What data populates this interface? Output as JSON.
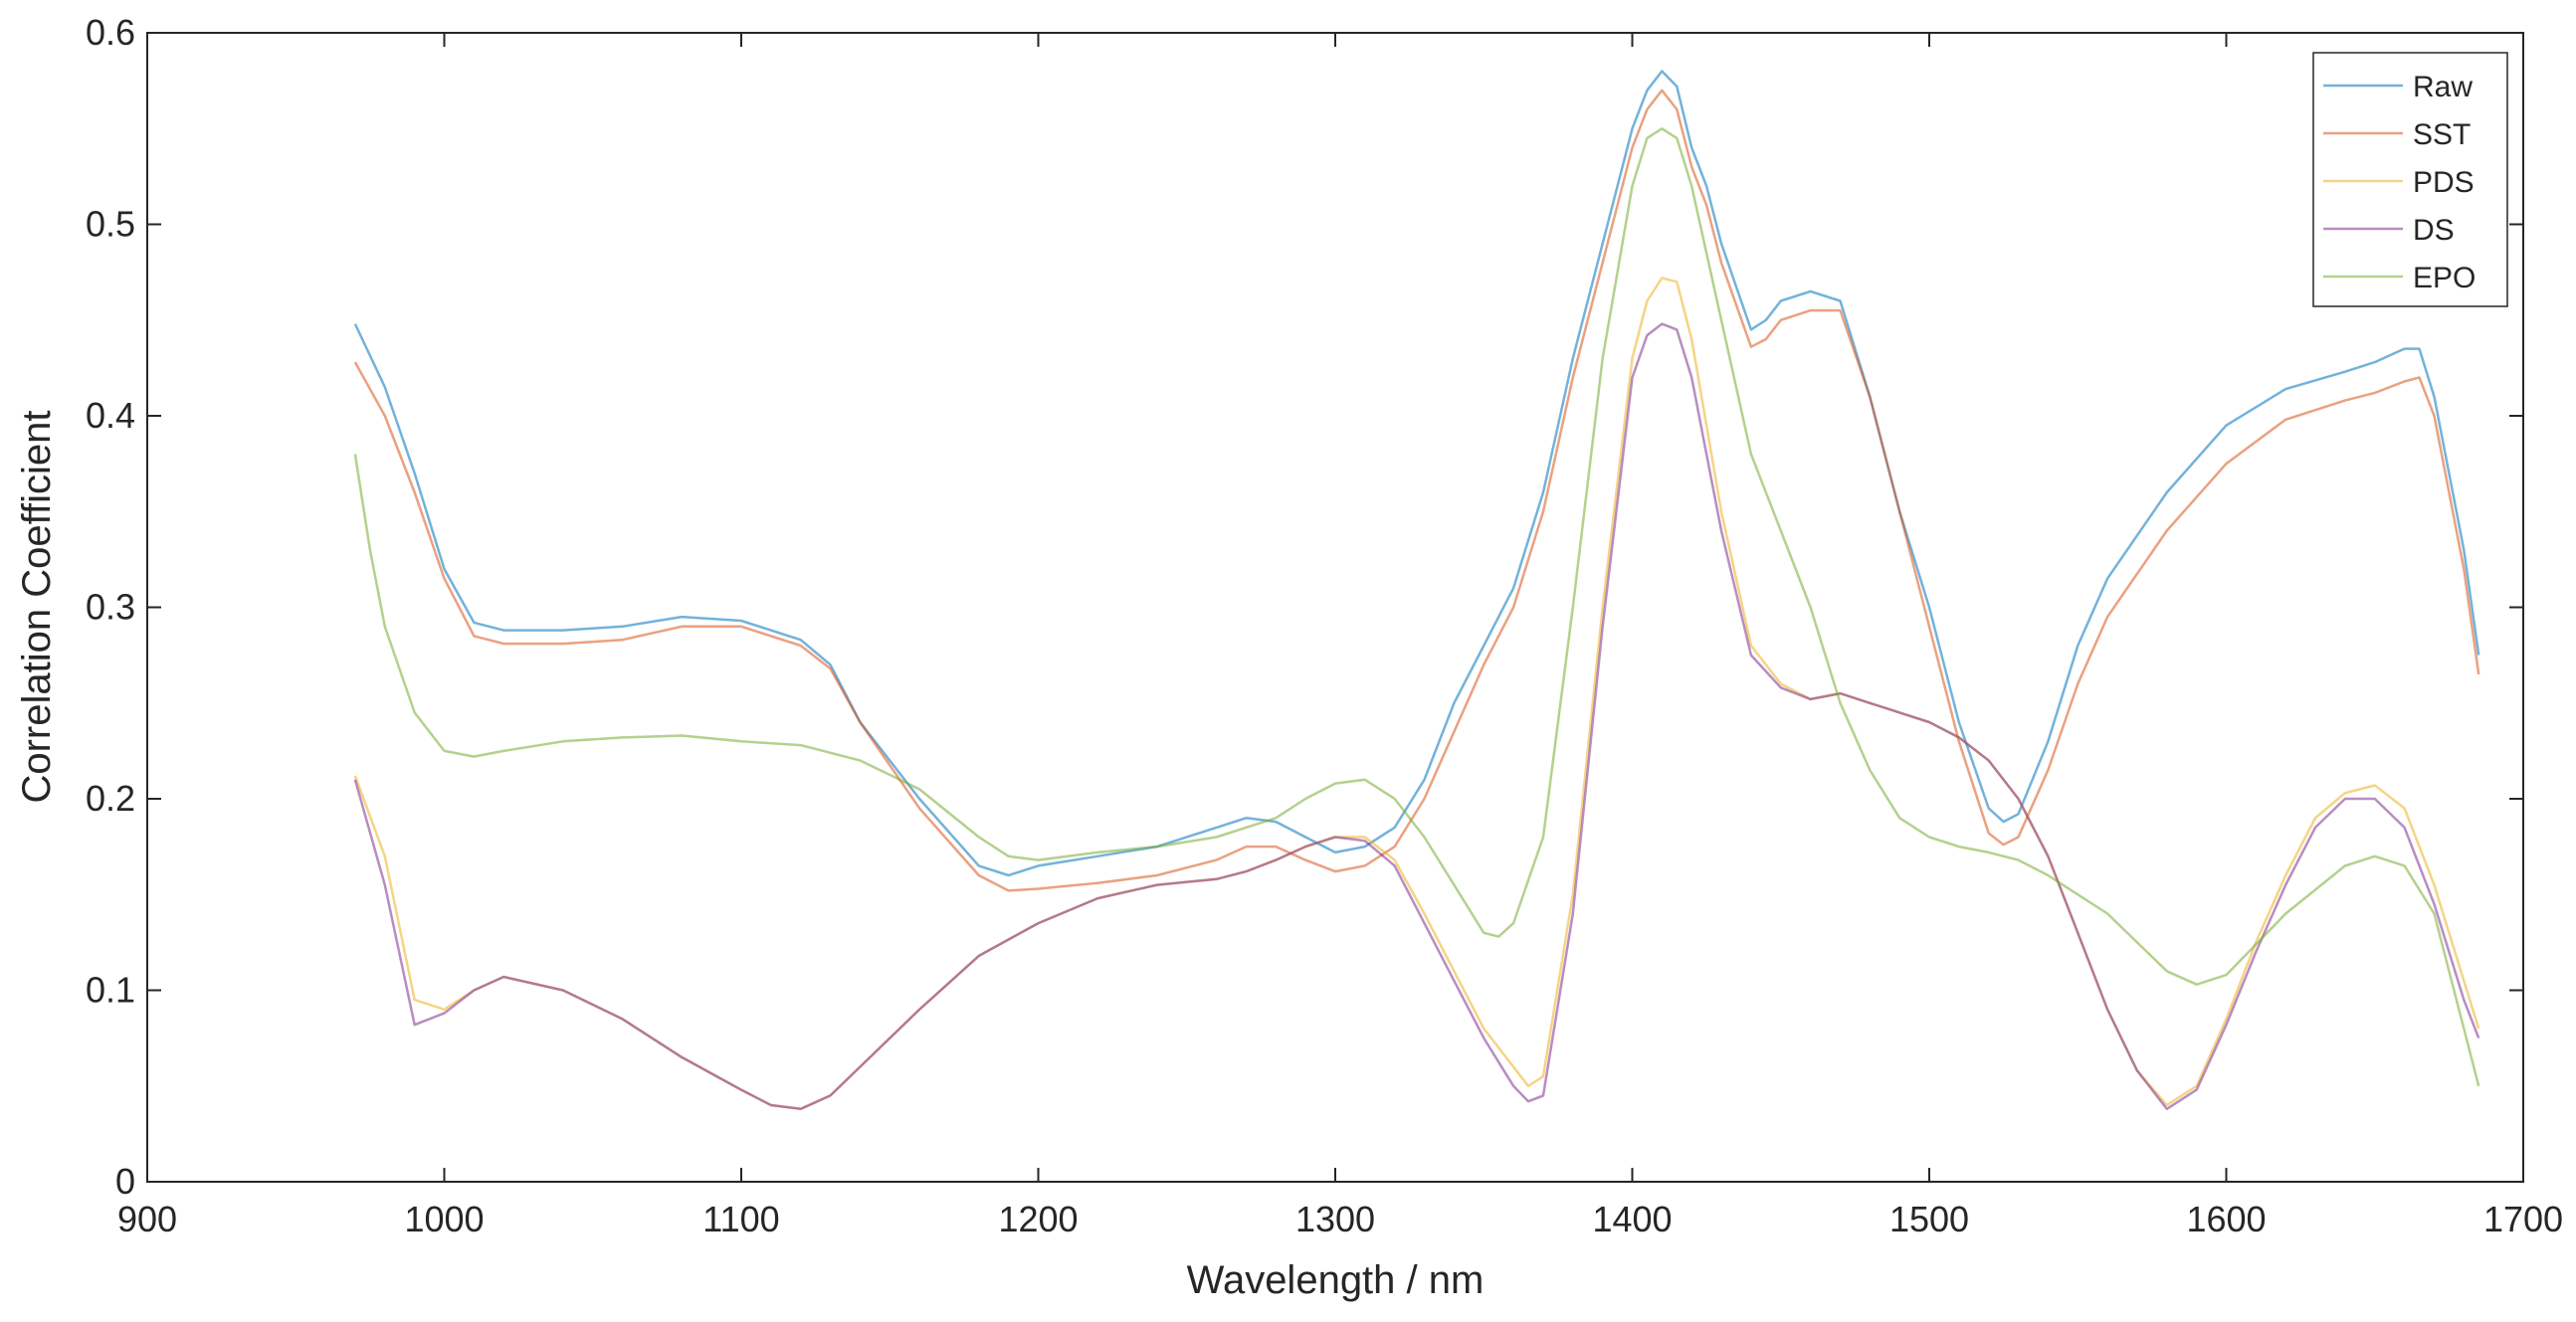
{
  "chart_data": {
    "type": "line",
    "title": "",
    "xlabel": "Wavelength / nm",
    "ylabel": "Correlation Coefficient",
    "xlim": [
      900,
      1700
    ],
    "ylim": [
      0,
      0.6
    ],
    "xticks": [
      900,
      1000,
      1100,
      1200,
      1300,
      1400,
      1500,
      1600,
      1700
    ],
    "yticks": [
      0,
      0.1,
      0.2,
      0.3,
      0.4,
      0.5,
      0.6
    ],
    "xtick_labels": [
      "900",
      "1000",
      "1100",
      "1200",
      "1300",
      "1400",
      "1500",
      "1600",
      "1700"
    ],
    "ytick_labels": [
      "0",
      "0.1",
      "0.2",
      "0.3",
      "0.4",
      "0.5",
      "0.6"
    ],
    "grid": false,
    "legend_position": "top-right",
    "series": [
      {
        "name": "Raw",
        "color": "#0072BD",
        "x": [
          970,
          980,
          990,
          1000,
          1010,
          1020,
          1040,
          1060,
          1080,
          1100,
          1120,
          1130,
          1140,
          1160,
          1180,
          1190,
          1200,
          1220,
          1240,
          1260,
          1270,
          1280,
          1290,
          1300,
          1310,
          1320,
          1330,
          1340,
          1350,
          1360,
          1370,
          1380,
          1390,
          1400,
          1405,
          1410,
          1415,
          1420,
          1425,
          1430,
          1440,
          1445,
          1450,
          1460,
          1470,
          1480,
          1490,
          1500,
          1510,
          1520,
          1525,
          1530,
          1540,
          1550,
          1560,
          1580,
          1600,
          1620,
          1640,
          1650,
          1660,
          1665,
          1670,
          1680,
          1685
        ],
        "y": [
          0.448,
          0.415,
          0.37,
          0.32,
          0.292,
          0.288,
          0.288,
          0.29,
          0.295,
          0.293,
          0.283,
          0.27,
          0.24,
          0.2,
          0.165,
          0.16,
          0.165,
          0.17,
          0.175,
          0.185,
          0.19,
          0.188,
          0.18,
          0.172,
          0.175,
          0.185,
          0.21,
          0.25,
          0.28,
          0.31,
          0.36,
          0.43,
          0.49,
          0.55,
          0.57,
          0.58,
          0.572,
          0.54,
          0.52,
          0.49,
          0.445,
          0.45,
          0.46,
          0.465,
          0.46,
          0.41,
          0.35,
          0.3,
          0.24,
          0.195,
          0.188,
          0.192,
          0.23,
          0.28,
          0.315,
          0.36,
          0.395,
          0.414,
          0.423,
          0.428,
          0.435,
          0.435,
          0.41,
          0.33,
          0.275
        ]
      },
      {
        "name": "SST",
        "color": "#D95319",
        "x": [
          970,
          980,
          990,
          1000,
          1010,
          1020,
          1040,
          1060,
          1080,
          1100,
          1120,
          1130,
          1140,
          1160,
          1180,
          1190,
          1200,
          1220,
          1240,
          1260,
          1270,
          1280,
          1290,
          1300,
          1310,
          1320,
          1330,
          1340,
          1350,
          1360,
          1370,
          1380,
          1390,
          1400,
          1405,
          1410,
          1415,
          1420,
          1425,
          1430,
          1440,
          1445,
          1450,
          1460,
          1470,
          1480,
          1490,
          1500,
          1510,
          1520,
          1525,
          1530,
          1540,
          1550,
          1560,
          1580,
          1600,
          1620,
          1640,
          1650,
          1660,
          1665,
          1670,
          1680,
          1685
        ],
        "y": [
          0.428,
          0.4,
          0.36,
          0.315,
          0.285,
          0.281,
          0.281,
          0.283,
          0.29,
          0.29,
          0.28,
          0.268,
          0.24,
          0.195,
          0.16,
          0.152,
          0.153,
          0.156,
          0.16,
          0.168,
          0.175,
          0.175,
          0.168,
          0.162,
          0.165,
          0.175,
          0.2,
          0.235,
          0.27,
          0.3,
          0.35,
          0.42,
          0.48,
          0.54,
          0.56,
          0.57,
          0.56,
          0.53,
          0.51,
          0.48,
          0.436,
          0.44,
          0.45,
          0.455,
          0.455,
          0.41,
          0.35,
          0.29,
          0.23,
          0.182,
          0.176,
          0.18,
          0.215,
          0.26,
          0.295,
          0.34,
          0.375,
          0.398,
          0.408,
          0.412,
          0.418,
          0.42,
          0.4,
          0.32,
          0.265
        ]
      },
      {
        "name": "PDS",
        "color": "#EDB120",
        "x": [
          970,
          980,
          990,
          1000,
          1010,
          1020,
          1040,
          1060,
          1080,
          1100,
          1110,
          1120,
          1130,
          1140,
          1160,
          1180,
          1200,
          1220,
          1240,
          1260,
          1270,
          1280,
          1290,
          1300,
          1310,
          1320,
          1330,
          1340,
          1350,
          1360,
          1365,
          1370,
          1380,
          1390,
          1400,
          1405,
          1410,
          1415,
          1420,
          1430,
          1440,
          1450,
          1460,
          1470,
          1480,
          1490,
          1500,
          1510,
          1520,
          1530,
          1540,
          1550,
          1560,
          1570,
          1580,
          1590,
          1600,
          1610,
          1620,
          1630,
          1640,
          1650,
          1660,
          1670,
          1680,
          1685
        ],
        "y": [
          0.212,
          0.17,
          0.095,
          0.09,
          0.1,
          0.107,
          0.1,
          0.085,
          0.065,
          0.048,
          0.04,
          0.038,
          0.045,
          0.06,
          0.09,
          0.118,
          0.135,
          0.148,
          0.155,
          0.158,
          0.162,
          0.168,
          0.175,
          0.18,
          0.18,
          0.168,
          0.14,
          0.11,
          0.08,
          0.06,
          0.05,
          0.055,
          0.15,
          0.3,
          0.43,
          0.46,
          0.472,
          0.47,
          0.44,
          0.35,
          0.28,
          0.26,
          0.252,
          0.255,
          0.25,
          0.245,
          0.24,
          0.232,
          0.22,
          0.2,
          0.17,
          0.13,
          0.09,
          0.058,
          0.04,
          0.05,
          0.085,
          0.125,
          0.16,
          0.19,
          0.203,
          0.207,
          0.195,
          0.155,
          0.105,
          0.08
        ]
      },
      {
        "name": "DS",
        "color": "#7E2F8E",
        "x": [
          970,
          980,
          990,
          1000,
          1010,
          1020,
          1040,
          1060,
          1080,
          1100,
          1110,
          1120,
          1130,
          1140,
          1160,
          1180,
          1200,
          1220,
          1240,
          1260,
          1270,
          1280,
          1290,
          1300,
          1310,
          1320,
          1330,
          1340,
          1350,
          1360,
          1365,
          1370,
          1380,
          1390,
          1400,
          1405,
          1410,
          1415,
          1420,
          1430,
          1440,
          1450,
          1460,
          1470,
          1480,
          1490,
          1500,
          1510,
          1520,
          1530,
          1540,
          1550,
          1560,
          1570,
          1580,
          1590,
          1600,
          1610,
          1620,
          1630,
          1640,
          1650,
          1660,
          1670,
          1680,
          1685
        ],
        "y": [
          0.21,
          0.155,
          0.082,
          0.088,
          0.1,
          0.107,
          0.1,
          0.085,
          0.065,
          0.048,
          0.04,
          0.038,
          0.045,
          0.06,
          0.09,
          0.118,
          0.135,
          0.148,
          0.155,
          0.158,
          0.162,
          0.168,
          0.175,
          0.18,
          0.178,
          0.165,
          0.135,
          0.105,
          0.075,
          0.05,
          0.042,
          0.045,
          0.14,
          0.29,
          0.42,
          0.442,
          0.448,
          0.445,
          0.42,
          0.34,
          0.275,
          0.258,
          0.252,
          0.255,
          0.25,
          0.245,
          0.24,
          0.232,
          0.22,
          0.2,
          0.17,
          0.13,
          0.09,
          0.058,
          0.038,
          0.048,
          0.082,
          0.12,
          0.155,
          0.185,
          0.2,
          0.2,
          0.185,
          0.145,
          0.095,
          0.075
        ]
      },
      {
        "name": "EPO",
        "color": "#77AC30",
        "x": [
          970,
          975,
          980,
          990,
          1000,
          1010,
          1020,
          1040,
          1060,
          1080,
          1100,
          1120,
          1140,
          1160,
          1180,
          1190,
          1200,
          1220,
          1240,
          1260,
          1280,
          1290,
          1300,
          1310,
          1320,
          1330,
          1340,
          1350,
          1355,
          1360,
          1370,
          1380,
          1390,
          1400,
          1405,
          1410,
          1415,
          1420,
          1430,
          1440,
          1450,
          1460,
          1470,
          1480,
          1490,
          1500,
          1510,
          1520,
          1530,
          1540,
          1560,
          1580,
          1590,
          1600,
          1620,
          1640,
          1650,
          1660,
          1670,
          1680,
          1685
        ],
        "y": [
          0.38,
          0.33,
          0.29,
          0.245,
          0.225,
          0.222,
          0.225,
          0.23,
          0.232,
          0.233,
          0.23,
          0.228,
          0.22,
          0.205,
          0.18,
          0.17,
          0.168,
          0.172,
          0.175,
          0.18,
          0.19,
          0.2,
          0.208,
          0.21,
          0.2,
          0.18,
          0.155,
          0.13,
          0.128,
          0.135,
          0.18,
          0.3,
          0.43,
          0.52,
          0.545,
          0.55,
          0.545,
          0.52,
          0.45,
          0.38,
          0.34,
          0.3,
          0.25,
          0.215,
          0.19,
          0.18,
          0.175,
          0.172,
          0.168,
          0.16,
          0.14,
          0.11,
          0.103,
          0.108,
          0.14,
          0.165,
          0.17,
          0.165,
          0.14,
          0.08,
          0.05
        ]
      }
    ]
  }
}
